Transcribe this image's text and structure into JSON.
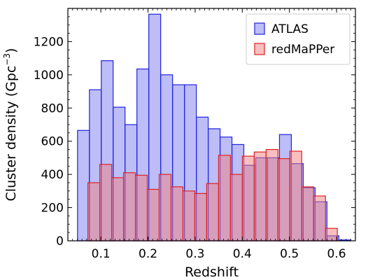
{
  "chart_data": {
    "type": "bar",
    "subtype": "overlaid-histogram",
    "xlabel": "Redshift",
    "ylabel": "Cluster density (Gpc",
    "ylabel_sup": "−3",
    "ylabel_close": ")",
    "xlim": [
      0.03,
      0.64
    ],
    "ylim": [
      0,
      1400
    ],
    "xticks": [
      0.1,
      0.2,
      0.3,
      0.4,
      0.5,
      0.6
    ],
    "xtick_labels": [
      "0.1",
      "0.2",
      "0.3",
      "0.4",
      "0.5",
      "0.6"
    ],
    "yticks": [
      0,
      200,
      400,
      600,
      800,
      1000,
      1200
    ],
    "ytick_labels": [
      "0",
      "200",
      "400",
      "600",
      "800",
      "1000",
      "1200"
    ],
    "bin_width": 0.0252,
    "legend_position": "top-right",
    "series": [
      {
        "name": "ATLAS",
        "fill": "#7b7bf0",
        "stroke": "#2222dd",
        "fill_opacity": 0.5,
        "bin_starts": [
          0.0505,
          0.0757,
          0.1009,
          0.1261,
          0.1513,
          0.1765,
          0.2017,
          0.2269,
          0.2521,
          0.2773,
          0.3025,
          0.3277,
          0.3529,
          0.3781,
          0.4033,
          0.4285,
          0.4537,
          0.4789,
          0.5041,
          0.5293,
          0.5545,
          0.5797,
          0.6049
        ],
        "values": [
          665,
          910,
          1085,
          805,
          700,
          1035,
          1365,
          1000,
          940,
          940,
          745,
          675,
          625,
          580,
          455,
          500,
          500,
          640,
          465,
          320,
          235,
          30,
          5
        ]
      },
      {
        "name": "redMaPPer",
        "fill": "#f08080",
        "stroke": "#dd2222",
        "fill_opacity": 0.5,
        "bin_starts": [
          0.0725,
          0.0977,
          0.1229,
          0.1481,
          0.1733,
          0.1985,
          0.2237,
          0.2489,
          0.2741,
          0.2993,
          0.3245,
          0.3497,
          0.3749,
          0.4001,
          0.4253,
          0.4505,
          0.4757,
          0.5009,
          0.5261,
          0.5513,
          0.5765
        ],
        "values": [
          350,
          460,
          380,
          410,
          395,
          310,
          400,
          325,
          300,
          285,
          345,
          515,
          400,
          510,
          535,
          550,
          495,
          540,
          325,
          270,
          75
        ]
      }
    ]
  }
}
